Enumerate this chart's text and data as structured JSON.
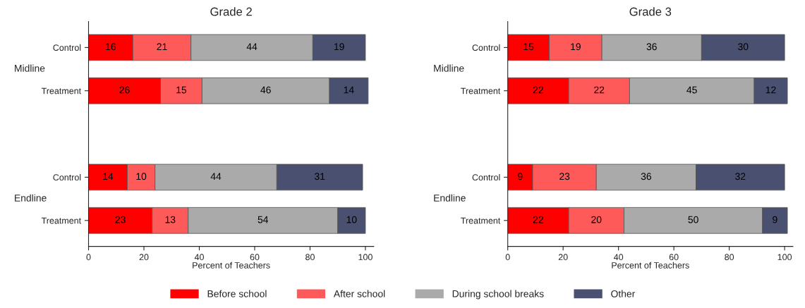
{
  "chart_data": [
    {
      "type": "bar",
      "title": "Grade 2",
      "orientation": "horizontal",
      "stacked": true,
      "data_labels": true,
      "xlabel": "Percent of Teachers",
      "categories": [
        "Control",
        "Treatment",
        null,
        "Control",
        "Treatment"
      ],
      "annotations": [
        "Midline",
        "Endline"
      ],
      "series": [
        {
          "name": "Before school",
          "color": "#ff0000",
          "values": [
            16,
            26,
            null,
            14,
            23
          ]
        },
        {
          "name": "After school",
          "color": "#ff5a5a",
          "values": [
            21,
            15,
            null,
            10,
            13
          ]
        },
        {
          "name": "During school breaks",
          "color": "#aaaaaa",
          "values": [
            44,
            46,
            null,
            44,
            54
          ]
        },
        {
          "name": "Other",
          "color": "#4a5170",
          "values": [
            19,
            14,
            null,
            31,
            10
          ]
        }
      ],
      "xlim": [
        0,
        103
      ],
      "xticks": [
        0,
        20,
        40,
        60,
        80,
        100
      ],
      "grid": false,
      "legend": "bottom"
    },
    {
      "type": "bar",
      "title": "Grade 3",
      "orientation": "horizontal",
      "stacked": true,
      "data_labels": true,
      "xlabel": "Percent of Teachers",
      "categories": [
        "Control",
        "Treatment",
        null,
        "Control",
        "Treatment"
      ],
      "annotations": [
        "Midline",
        "Endline"
      ],
      "series": [
        {
          "color": "#ff0000",
          "values": [
            15,
            22,
            null,
            9,
            22
          ]
        },
        {
          "color": "#ff5a5a",
          "values": [
            19,
            22,
            null,
            23,
            20
          ]
        },
        {
          "color": "#aaaaaa",
          "values": [
            36,
            45,
            null,
            36,
            50
          ]
        },
        {
          "color": "#4a5170",
          "values": [
            30,
            12,
            null,
            32,
            9
          ]
        }
      ],
      "xlim": [
        0,
        103
      ],
      "xticks": [
        0,
        20,
        40,
        60,
        80,
        100
      ],
      "grid": false,
      "legend": false
    }
  ]
}
